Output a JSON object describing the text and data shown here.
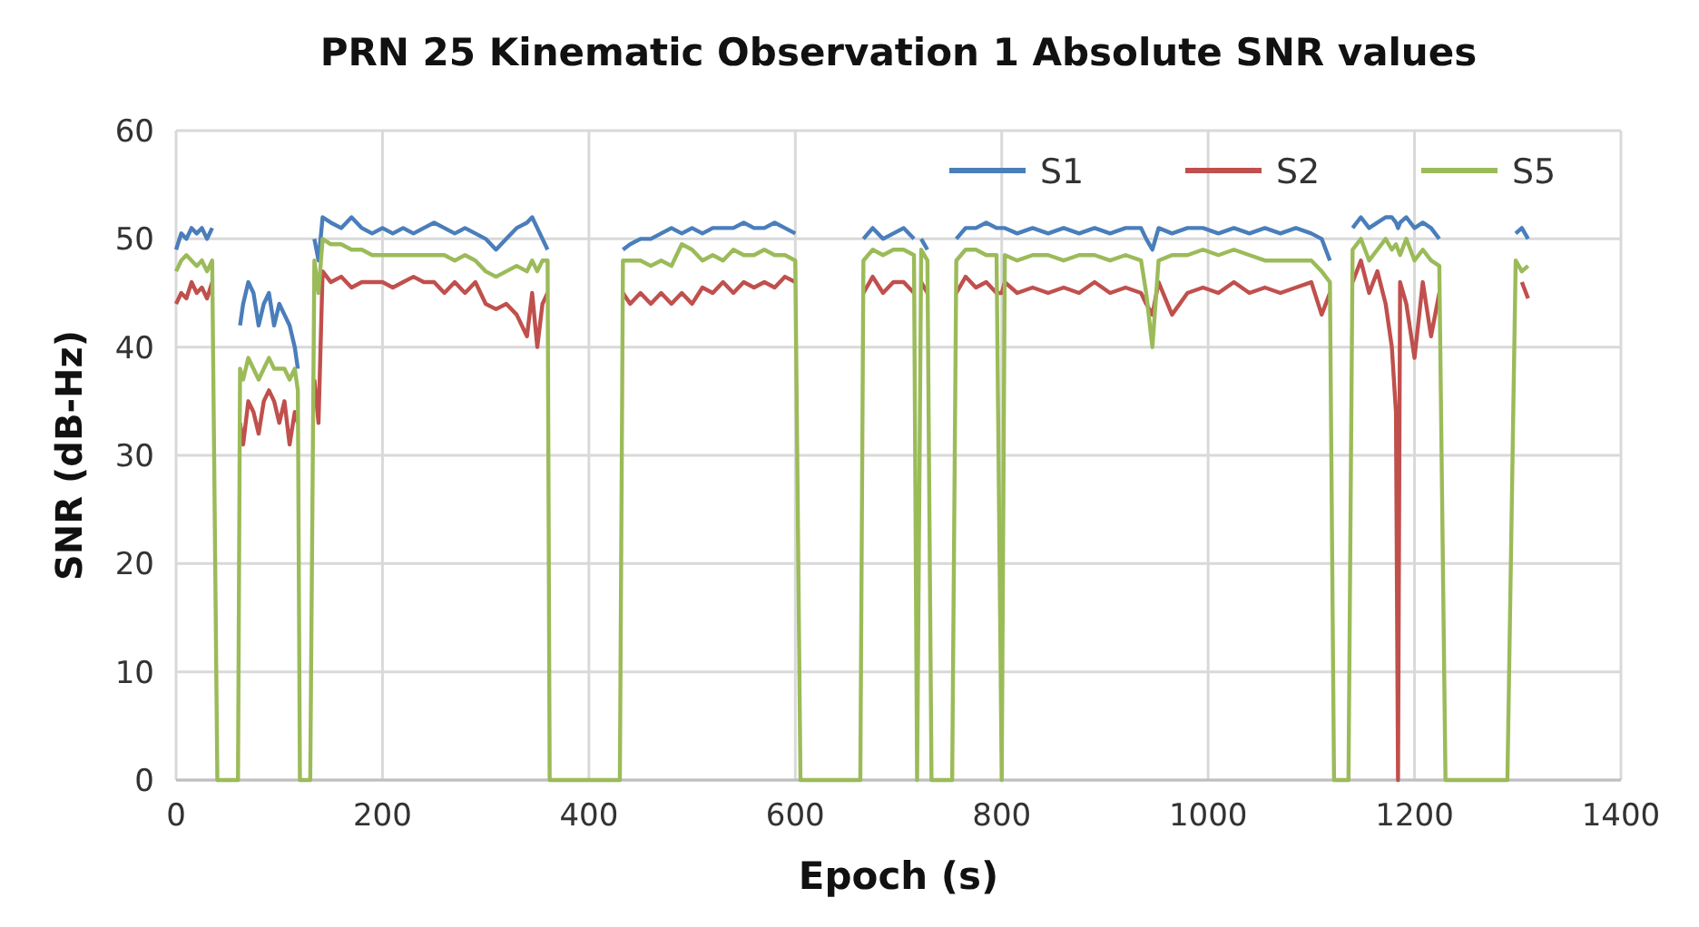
{
  "chart_data": {
    "type": "line",
    "title": "PRN 25 Kinematic Observation 1 Absolute SNR values",
    "xlabel": "Epoch (s)",
    "ylabel": "SNR (dB-Hz)",
    "x": [
      0,
      5,
      10,
      15,
      20,
      25,
      30,
      35,
      40,
      60,
      62,
      65,
      70,
      75,
      80,
      85,
      90,
      95,
      100,
      105,
      110,
      115,
      118,
      120,
      130,
      134,
      138,
      142,
      150,
      160,
      170,
      180,
      190,
      200,
      210,
      220,
      230,
      240,
      250,
      260,
      270,
      280,
      290,
      300,
      310,
      320,
      330,
      340,
      345,
      350,
      355,
      360,
      362,
      430,
      433,
      440,
      450,
      460,
      470,
      480,
      490,
      500,
      510,
      520,
      530,
      540,
      550,
      560,
      570,
      580,
      590,
      600,
      605,
      663,
      666,
      675,
      685,
      695,
      705,
      715,
      718,
      722,
      728,
      732,
      752,
      756,
      765,
      775,
      785,
      795,
      800,
      803,
      815,
      830,
      845,
      860,
      875,
      890,
      905,
      920,
      935,
      940,
      946,
      952,
      965,
      980,
      995,
      1010,
      1025,
      1040,
      1055,
      1070,
      1085,
      1100,
      1110,
      1118,
      1122,
      1136,
      1140,
      1148,
      1156,
      1164,
      1172,
      1178,
      1182,
      1184,
      1186,
      1192,
      1200,
      1208,
      1216,
      1224,
      1230,
      1290,
      1298,
      1304,
      1310
    ],
    "series": [
      {
        "name": "S1",
        "color": "#4a7ebb",
        "values": [
          49,
          50.5,
          50,
          51,
          50.5,
          51,
          50,
          51,
          null,
          null,
          42,
          44,
          46,
          45,
          42,
          44,
          45,
          42,
          44,
          43,
          42,
          40,
          38,
          null,
          null,
          50,
          48,
          52,
          51.5,
          51,
          52,
          51,
          50.5,
          51,
          50.5,
          51,
          50.5,
          51,
          51.5,
          51,
          50.5,
          51,
          50.5,
          50,
          49,
          50,
          51,
          51.5,
          52,
          51,
          50,
          49,
          null,
          null,
          49,
          49.5,
          50,
          50,
          50.5,
          51,
          50.5,
          51,
          50.5,
          51,
          51,
          51,
          51.5,
          51,
          51,
          51.5,
          51,
          50.5,
          null,
          null,
          50,
          51,
          50,
          50.5,
          51,
          50,
          null,
          50,
          49,
          null,
          null,
          50,
          51,
          51,
          51.5,
          51,
          51,
          51,
          50.5,
          51,
          50.5,
          51,
          50.5,
          51,
          50.5,
          51,
          51,
          50,
          49,
          51,
          50.5,
          51,
          51,
          50.5,
          51,
          50.5,
          51,
          50.5,
          51,
          50.5,
          50,
          48,
          null,
          null,
          51,
          52,
          51,
          51.5,
          52,
          52,
          51.5,
          51,
          51.5,
          52,
          51,
          51.5,
          51,
          50,
          null,
          null,
          50.5,
          51,
          50
        ]
      },
      {
        "name": "S2",
        "color": "#c0504d",
        "values": [
          44,
          45,
          44.5,
          46,
          45,
          45.5,
          44.5,
          46,
          null,
          null,
          33,
          31,
          35,
          34,
          32,
          35,
          36,
          35,
          33,
          35,
          31,
          34,
          33,
          null,
          null,
          37,
          33,
          47,
          46,
          46.5,
          45.5,
          46,
          46,
          46,
          45.5,
          46,
          46.5,
          46,
          46,
          45,
          46,
          45,
          46,
          44,
          43.5,
          44,
          43,
          41,
          45,
          40,
          44,
          45,
          null,
          null,
          45,
          44,
          45,
          44,
          45,
          44,
          45,
          44,
          45.5,
          45,
          46,
          45,
          46,
          45.5,
          46,
          45.5,
          46.5,
          46,
          null,
          null,
          45,
          46.5,
          45,
          46,
          46,
          45,
          null,
          46,
          45,
          null,
          null,
          45,
          46.5,
          45.5,
          46,
          45,
          45,
          46,
          45,
          45.5,
          45,
          45.5,
          45,
          46,
          45,
          45.5,
          45,
          44,
          43,
          46,
          43,
          45,
          45.5,
          45,
          46,
          45,
          45.5,
          45,
          45.5,
          46,
          43,
          45,
          null,
          null,
          46,
          48,
          45,
          47,
          44,
          40,
          34,
          0,
          46,
          44,
          39,
          46,
          41,
          45,
          null,
          null,
          null,
          46,
          44.5
        ]
      },
      {
        "name": "S5",
        "color": "#9bbb59",
        "values": [
          47,
          48,
          48.5,
          48,
          47.5,
          48,
          47,
          48,
          0,
          0,
          38,
          37,
          39,
          38,
          37,
          38,
          39,
          38,
          38,
          38,
          37,
          38,
          36,
          0,
          0,
          48,
          45,
          50,
          49.5,
          49.5,
          49,
          49,
          48.5,
          48.5,
          48.5,
          48.5,
          48.5,
          48.5,
          48.5,
          48.5,
          48,
          48.5,
          48,
          47,
          46.5,
          47,
          47.5,
          47,
          48,
          47,
          48,
          48,
          0,
          0,
          48,
          48,
          48,
          47.5,
          48,
          47.5,
          49.5,
          49,
          48,
          48.5,
          48,
          49,
          48.5,
          48.5,
          49,
          48.5,
          48.5,
          48,
          0,
          0,
          48,
          49,
          48.5,
          49,
          49,
          48.5,
          0,
          49,
          48,
          0,
          0,
          48,
          49,
          49,
          48.5,
          48.5,
          0,
          48.5,
          48,
          48.5,
          48.5,
          48,
          48.5,
          48.5,
          48,
          48.5,
          48,
          45,
          40,
          48,
          48.5,
          48.5,
          49,
          48.5,
          49,
          48.5,
          48,
          48,
          48,
          48,
          47,
          46,
          0,
          0,
          49,
          50,
          48,
          49,
          50,
          49,
          49.5,
          49,
          48.5,
          50,
          48,
          49,
          48,
          47.5,
          0,
          0,
          48,
          47,
          47.5
        ]
      }
    ],
    "xlim": [
      0,
      1400
    ],
    "xticks": [
      0,
      200,
      400,
      600,
      800,
      1000,
      1200,
      1400
    ],
    "ylim": [
      0,
      60
    ],
    "yticks": [
      0,
      10,
      20,
      30,
      40,
      50,
      60
    ],
    "grid": true,
    "legend": "top right"
  }
}
